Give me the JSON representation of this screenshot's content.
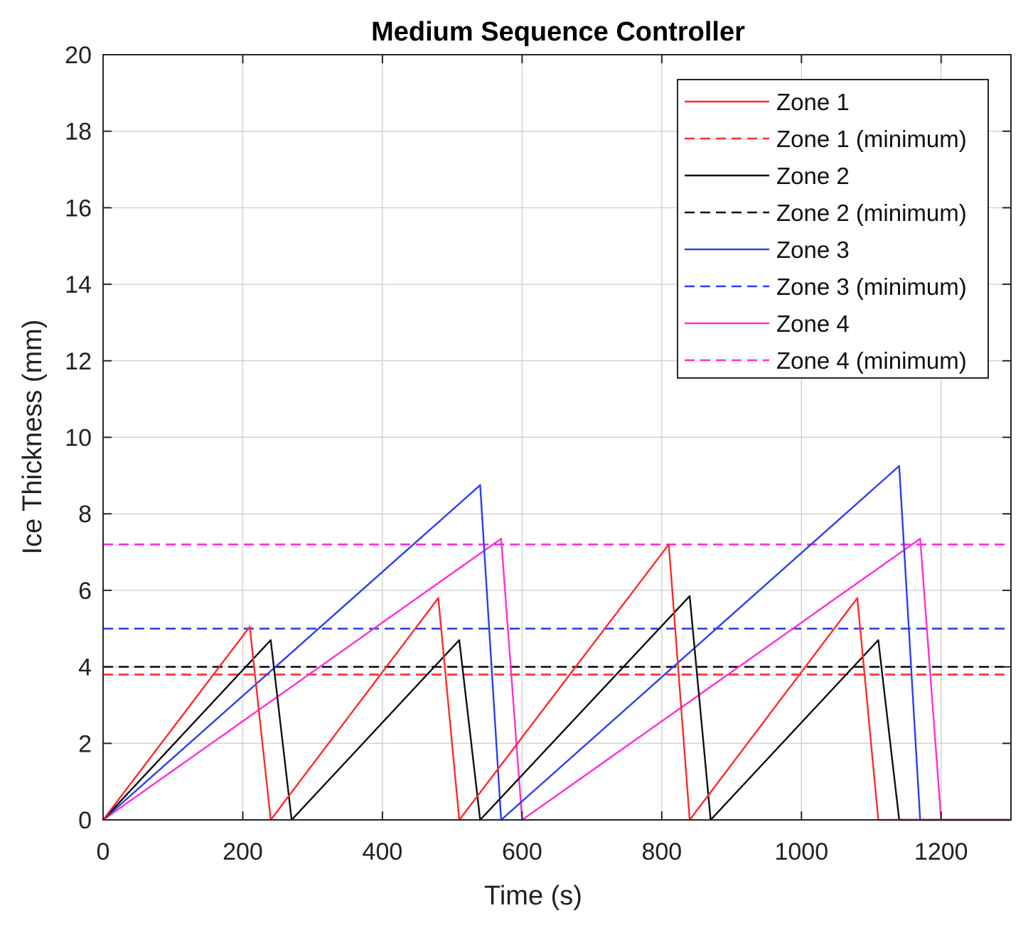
{
  "chart_data": {
    "type": "line",
    "title": "Medium Sequence Controller",
    "xlabel": "Time (s)",
    "ylabel": "Ice Thickness (mm)",
    "xlim": [
      0,
      1300
    ],
    "ylim": [
      0,
      20
    ],
    "xticks": [
      0,
      200,
      400,
      600,
      800,
      1000,
      1200
    ],
    "yticks": [
      0,
      2,
      4,
      6,
      8,
      10,
      12,
      14,
      16,
      18,
      20
    ],
    "grid": true,
    "legend_position": "top-right",
    "series": [
      {
        "name": "Zone 1",
        "color": "#ff2a2a",
        "style": "solid",
        "x": [
          0,
          210,
          240,
          480,
          510,
          810,
          840,
          1080,
          1110,
          1300
        ],
        "y": [
          0,
          5.05,
          0,
          5.8,
          0,
          7.2,
          0,
          5.8,
          0,
          0
        ]
      },
      {
        "name": "Zone 1 (minimum)",
        "color": "#ff2a2a",
        "style": "dashed",
        "x": [
          0,
          1300
        ],
        "y": [
          3.8,
          3.8
        ]
      },
      {
        "name": "Zone 2",
        "color": "#111111",
        "style": "solid",
        "x": [
          0,
          240,
          270,
          510,
          540,
          840,
          870,
          1110,
          1140,
          1300
        ],
        "y": [
          0,
          4.7,
          0,
          4.7,
          0,
          5.85,
          0,
          4.7,
          0,
          0
        ]
      },
      {
        "name": "Zone 2 (minimum)",
        "color": "#111111",
        "style": "dashed",
        "x": [
          0,
          1300
        ],
        "y": [
          4.0,
          4.0
        ]
      },
      {
        "name": "Zone 3",
        "color": "#2a3ff0",
        "style": "solid",
        "x": [
          0,
          540,
          570,
          1140,
          1170,
          1300
        ],
        "y": [
          0,
          8.75,
          0,
          9.25,
          0,
          0
        ]
      },
      {
        "name": "Zone 3 (minimum)",
        "color": "#2a3ff0",
        "style": "dashed",
        "x": [
          0,
          1300
        ],
        "y": [
          5.0,
          5.0
        ]
      },
      {
        "name": "Zone 4",
        "color": "#ff2ed8",
        "style": "solid",
        "x": [
          0,
          570,
          600,
          1170,
          1200
        ],
        "y": [
          0,
          7.35,
          0,
          7.35,
          0
        ]
      },
      {
        "name": "Zone 4 (minimum)",
        "color": "#ff2ed8",
        "style": "dashed",
        "x": [
          0,
          1300
        ],
        "y": [
          7.2,
          7.2
        ]
      }
    ]
  }
}
